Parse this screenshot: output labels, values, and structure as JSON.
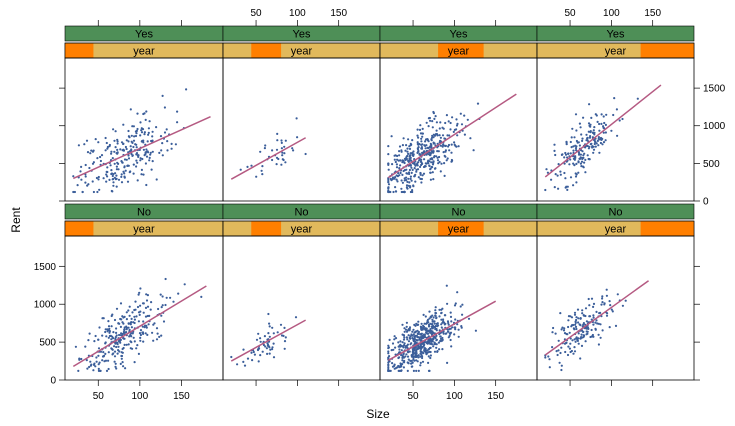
{
  "chart_data": {
    "type": "scatter",
    "xlabel": "Size",
    "ylabel": "Rent",
    "xlim": [
      10,
      200
    ],
    "ylim": [
      0,
      1900
    ],
    "x_ticks": [
      50,
      100,
      150
    ],
    "y_ticks": [
      0,
      500,
      1000,
      1500
    ],
    "strip_var_label": "year",
    "colors": {
      "strip_top": "#4E8F57",
      "strip_year_bg": "#E1B95C",
      "strip_year_marker": "#FF7F00",
      "points": "#3B5E9A",
      "fit_line": "#B55A82"
    },
    "panels": [
      {
        "row": "Yes",
        "year_segment": [
          0.0,
          0.18
        ],
        "fit": [
          [
            20,
            300
          ],
          [
            185,
            1120
          ]
        ],
        "n": 260,
        "center": [
          80,
          650
        ],
        "spread": [
          35,
          280
        ],
        "xrange": [
          20,
          185
        ]
      },
      {
        "row": "Yes",
        "year_segment": [
          0.18,
          0.37
        ],
        "fit": [
          [
            20,
            290
          ],
          [
            110,
            840
          ]
        ],
        "n": 38,
        "center": [
          70,
          520
        ],
        "spread": [
          22,
          180
        ],
        "xrange": [
          20,
          110
        ]
      },
      {
        "row": "Yes",
        "year_segment": [
          0.37,
          0.66
        ],
        "fit": [
          [
            20,
            310
          ],
          [
            175,
            1420
          ]
        ],
        "n": 420,
        "center": [
          60,
          560
        ],
        "spread": [
          28,
          250
        ],
        "xrange": [
          20,
          175
        ]
      },
      {
        "row": "Yes",
        "year_segment": [
          0.66,
          1.0
        ],
        "fit": [
          [
            20,
            320
          ],
          [
            160,
            1540
          ]
        ],
        "n": 200,
        "center": [
          65,
          650
        ],
        "spread": [
          25,
          230
        ],
        "xrange": [
          20,
          160
        ]
      },
      {
        "row": "No",
        "year_segment": [
          0.0,
          0.18
        ],
        "fit": [
          [
            20,
            180
          ],
          [
            180,
            1240
          ]
        ],
        "n": 280,
        "center": [
          80,
          620
        ],
        "spread": [
          30,
          260
        ],
        "xrange": [
          20,
          180
        ]
      },
      {
        "row": "No",
        "year_segment": [
          0.18,
          0.37
        ],
        "fit": [
          [
            20,
            250
          ],
          [
            110,
            790
          ]
        ],
        "n": 60,
        "center": [
          60,
          420
        ],
        "spread": [
          22,
          160
        ],
        "xrange": [
          20,
          110
        ]
      },
      {
        "row": "No",
        "year_segment": [
          0.37,
          0.66
        ],
        "fit": [
          [
            20,
            260
          ],
          [
            150,
            1040
          ]
        ],
        "n": 560,
        "center": [
          60,
          480
        ],
        "spread": [
          26,
          200
        ],
        "xrange": [
          20,
          150
        ]
      },
      {
        "row": "No",
        "year_segment": [
          0.66,
          1.0
        ],
        "fit": [
          [
            20,
            330
          ],
          [
            145,
            1310
          ]
        ],
        "n": 180,
        "center": [
          65,
          650
        ],
        "spread": [
          22,
          200
        ],
        "xrange": [
          20,
          145
        ]
      }
    ]
  }
}
